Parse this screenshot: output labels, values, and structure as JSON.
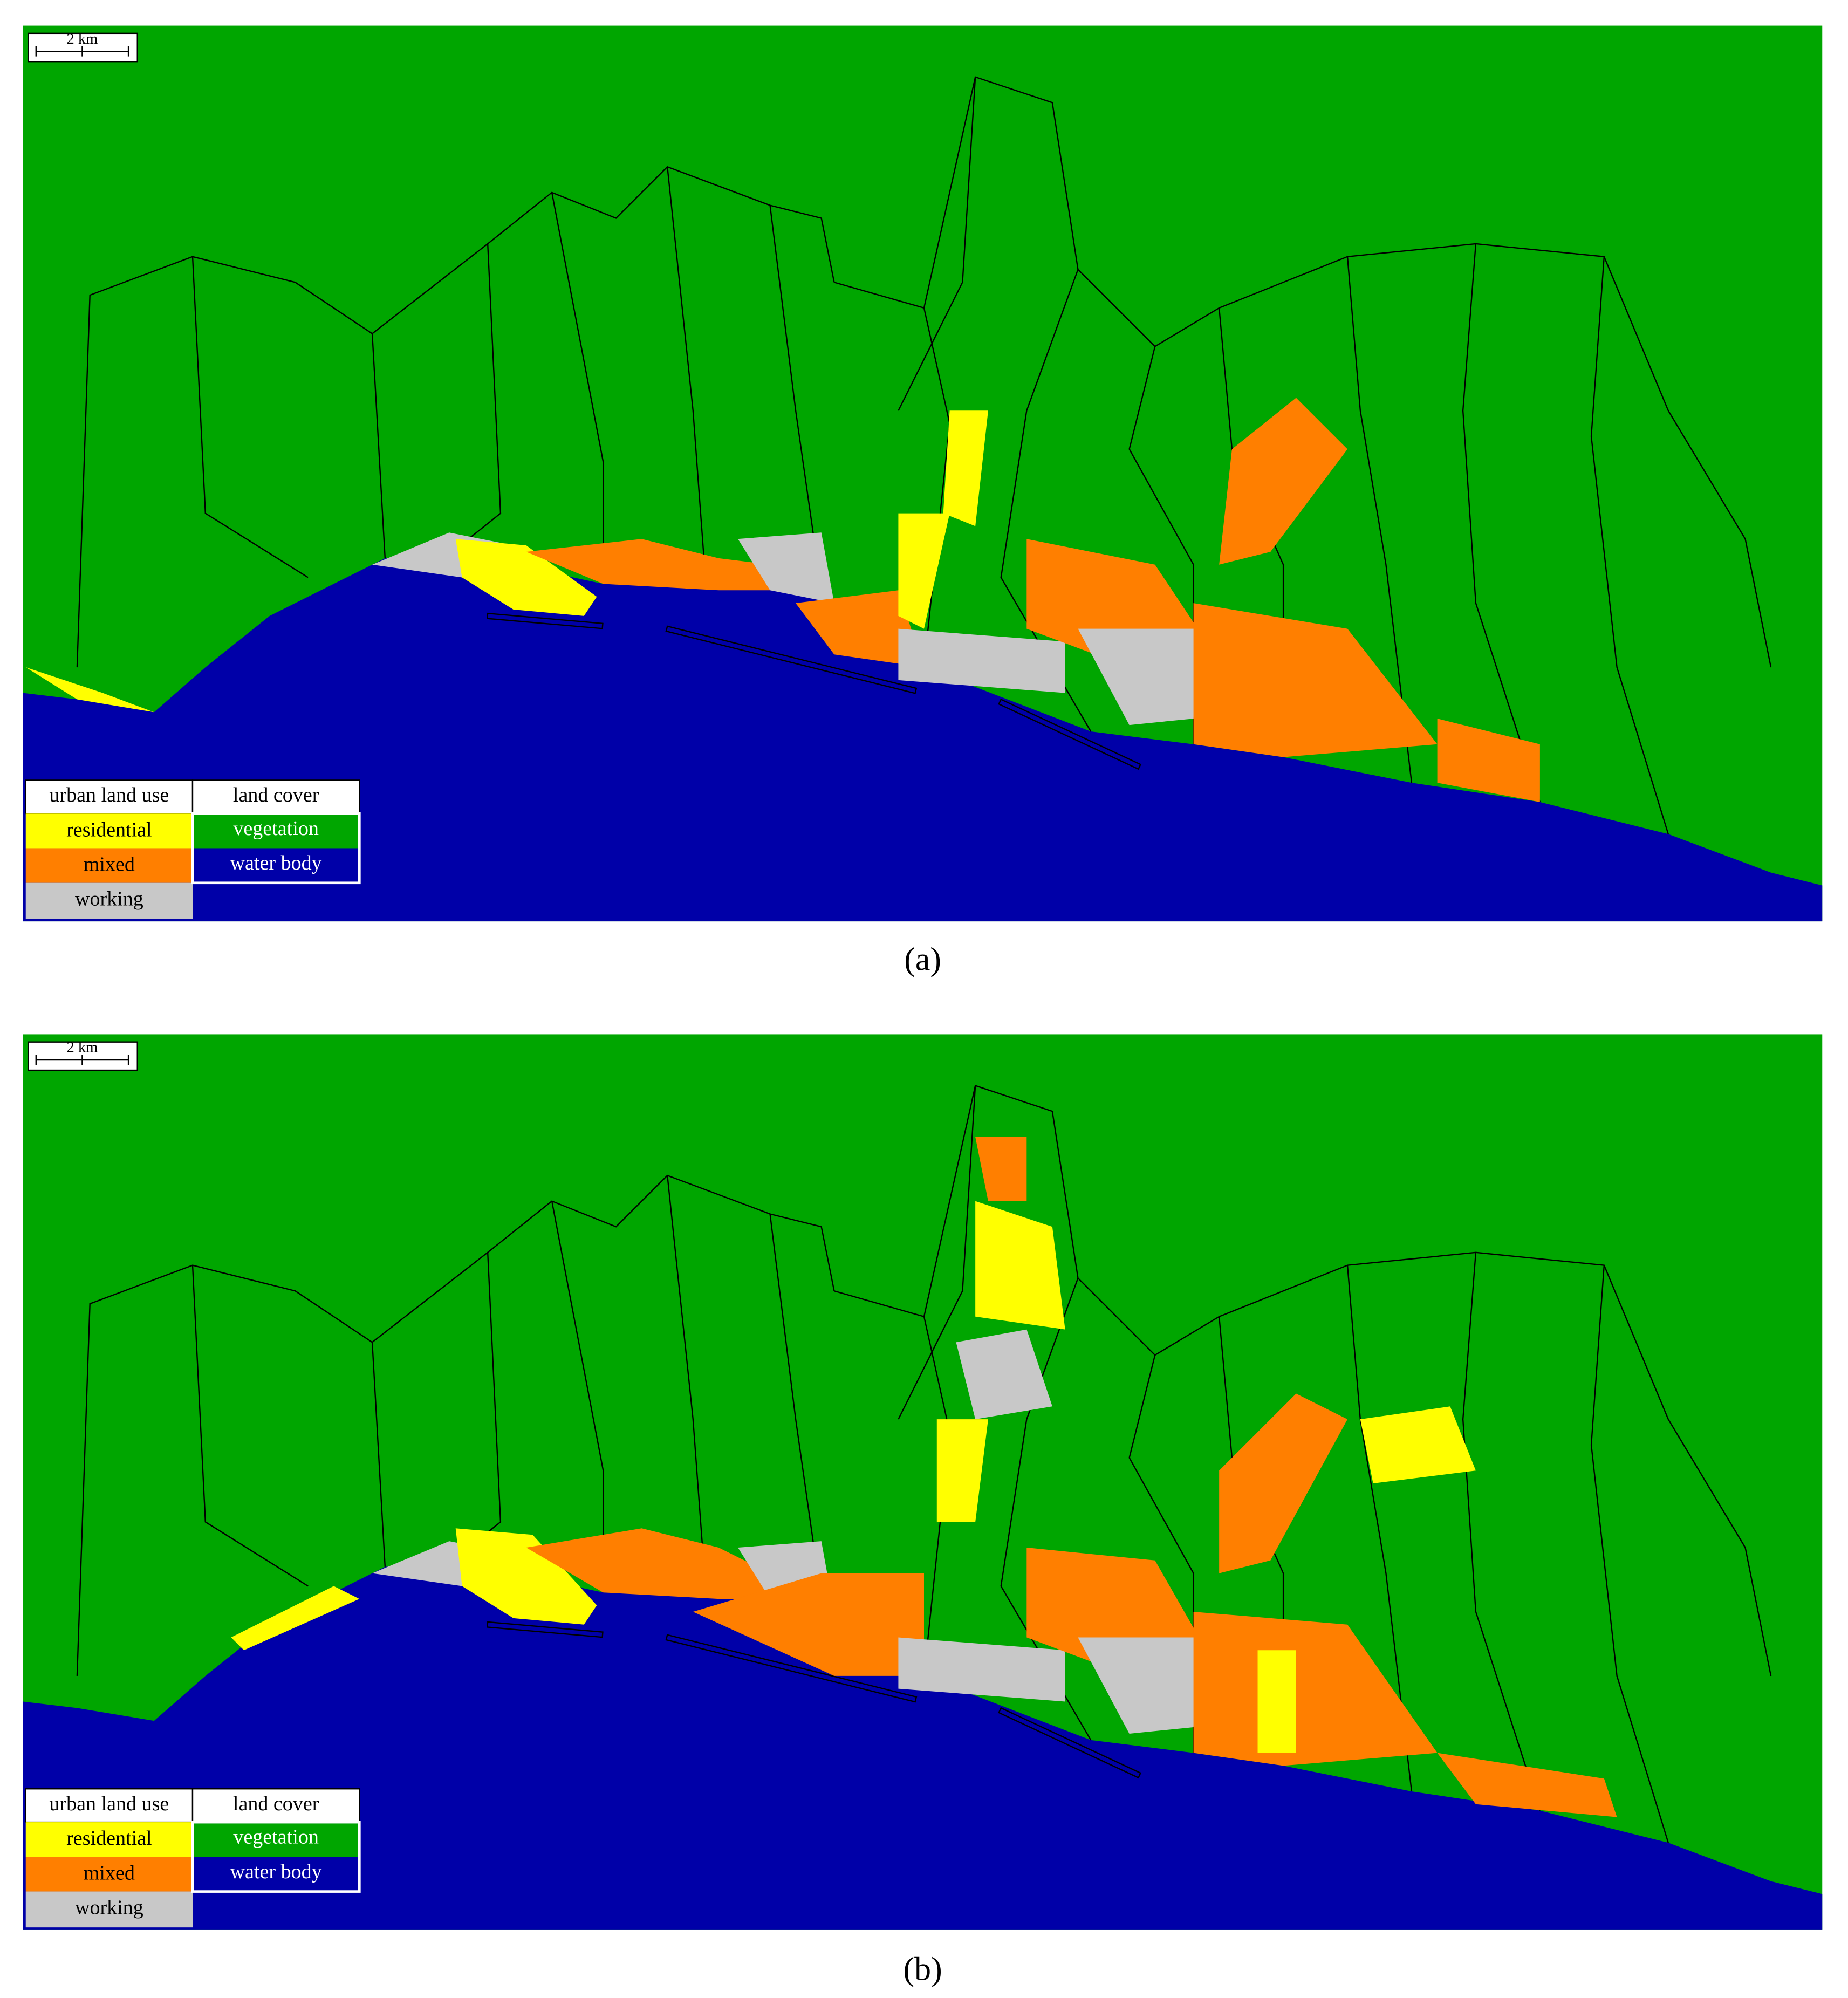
{
  "panels": [
    {
      "caption": "(a)",
      "scale_label": "2 km",
      "legend": {
        "urban_title": "urban land use",
        "urban": [
          "residential",
          "mixed",
          "working"
        ],
        "cover_title": "land cover",
        "cover": [
          "vegetation",
          "water body"
        ]
      }
    },
    {
      "caption": "(b)",
      "scale_label": "2 km",
      "legend": {
        "urban_title": "urban land use",
        "urban": [
          "residential",
          "mixed",
          "working"
        ],
        "cover_title": "land cover",
        "cover": [
          "vegetation",
          "water body"
        ]
      }
    }
  ]
}
